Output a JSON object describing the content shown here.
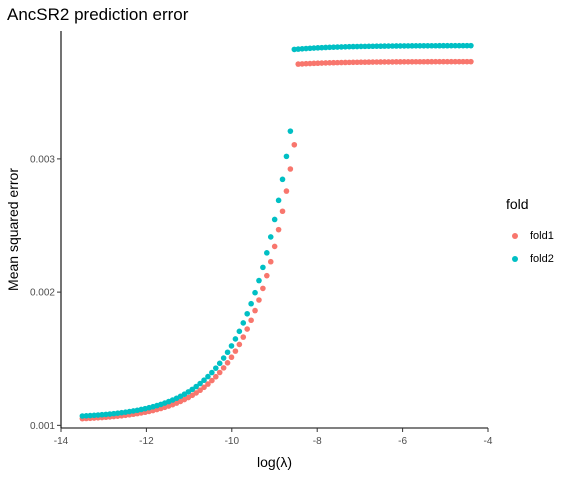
{
  "chart_data": {
    "type": "scatter",
    "title": "AncSR2 prediction error",
    "xlabel": "log(λ)",
    "ylabel": "Mean squared error",
    "xlim": [
      -14,
      -4
    ],
    "ylim": [
      0.00098,
      0.00396
    ],
    "x_ticks": [
      -14,
      -12,
      -10,
      -8,
      -6,
      -4
    ],
    "x_tick_labels": [
      "-14",
      "-12",
      "-10",
      "-8",
      "-6",
      "-4"
    ],
    "y_ticks": [
      0.001,
      0.002,
      0.003
    ],
    "y_tick_labels": [
      "0.001",
      "0.002",
      "0.003"
    ],
    "grid": false,
    "legend_position": "right",
    "legend_title": "fold",
    "series": [
      {
        "name": "fold1",
        "color": "#F8766D",
        "x_range": [
          -13.5,
          -4.4
        ],
        "threshold": -8.52,
        "y_start": 0.00105,
        "y_before_threshold": 0.00314,
        "y_after_threshold_start": 0.00371,
        "y_end": 0.00373
      },
      {
        "name": "fold2",
        "color": "#00BFC4",
        "x_range": [
          -13.5,
          -4.4
        ],
        "threshold": -8.6,
        "y_start": 0.00107,
        "y_before_threshold": 0.00327,
        "y_after_threshold_start": 0.00382,
        "y_end": 0.00385
      }
    ],
    "point_count": 100
  }
}
